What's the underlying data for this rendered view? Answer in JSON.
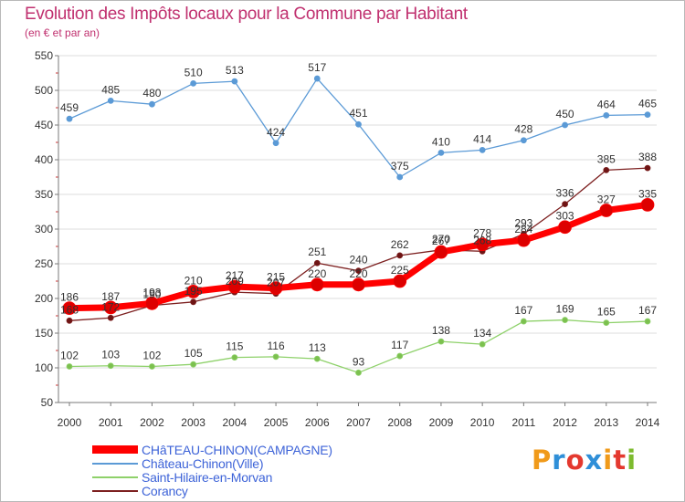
{
  "title": "Evolution des Impôts locaux pour la Commune par Habitant",
  "subtitle": "(en € et par an)",
  "logo_text": "Proxiti",
  "colors": {
    "title": "#c0306f",
    "axis": "#7a7a7a",
    "grid": "#dddddd",
    "legend_text": "#3d63d8",
    "logo": [
      "#f09a1a",
      "#2f8fd8",
      "#e4392f",
      "#2f8fd8",
      "#f09a1a",
      "#e4392f",
      "#7dbb2f"
    ]
  },
  "chart_data": {
    "type": "line",
    "x": [
      "2000",
      "2001",
      "2002",
      "2003",
      "2004",
      "2005",
      "2006",
      "2007",
      "2008",
      "2009",
      "2010",
      "2011",
      "2012",
      "2013",
      "2014"
    ],
    "ylim": [
      50,
      550
    ],
    "yticks": [
      "50",
      "100",
      "150",
      "200",
      "250",
      "300",
      "350",
      "400",
      "450",
      "500",
      "550"
    ],
    "grid": "horizontal",
    "legend_position": "bottom-left",
    "series": [
      {
        "name": "CHâTEAU-CHINON(CAMPAGNE)",
        "color": "#ff0000",
        "marker_color": "#dd0000",
        "line_width": 7,
        "marker_r": 7,
        "values": [
          186,
          187,
          193,
          210,
          217,
          215,
          220,
          220,
          225,
          267,
          278,
          284,
          303,
          327,
          335
        ]
      },
      {
        "name": "Château-Chinon(Ville)",
        "color": "#5b9ad6",
        "marker_color": "#5b9ad6",
        "line_width": 1.3,
        "marker_r": 3,
        "values": [
          459,
          485,
          480,
          510,
          513,
          424,
          517,
          451,
          375,
          410,
          414,
          428,
          450,
          464,
          465
        ]
      },
      {
        "name": "Saint-Hilaire-en-Morvan",
        "color": "#8ed16a",
        "marker_color": "#7cc04f",
        "line_width": 1.3,
        "marker_r": 3,
        "values": [
          102,
          103,
          102,
          105,
          115,
          116,
          113,
          93,
          117,
          138,
          134,
          167,
          169,
          165,
          167
        ]
      },
      {
        "name": "Corancy",
        "color": "#7d2020",
        "marker_color": "#6e1414",
        "line_width": 1.3,
        "marker_r": 3,
        "values": [
          168,
          172,
          190,
          195,
          209,
          207,
          251,
          240,
          262,
          270,
          268,
          293,
          336,
          385,
          388
        ]
      }
    ]
  }
}
